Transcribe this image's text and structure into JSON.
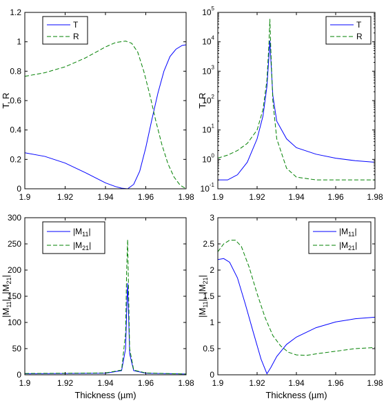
{
  "figure": {
    "background": "#ffffff",
    "series_colors": {
      "solid": "#0000ff",
      "dashed": "#008000"
    }
  },
  "chart_data": [
    {
      "id": "tr_linear",
      "type": "line",
      "title": "",
      "ylabel": "T, R",
      "xlabel": "",
      "xlim": [
        1.9,
        1.98
      ],
      "ylim": [
        0,
        1.2
      ],
      "yscale": "linear",
      "xticks": [
        1.9,
        1.92,
        1.94,
        1.96,
        1.98
      ],
      "xtick_labels": [
        "1.9",
        "1.92",
        "1.94",
        "1.96",
        "1.98"
      ],
      "yticks": [
        0,
        0.2,
        0.4,
        0.6,
        0.8,
        1,
        1.2
      ],
      "ytick_labels": [
        "0",
        "0.2",
        "0.4",
        "0.6",
        "0.8",
        "1",
        "1.2"
      ],
      "grid": false,
      "legend": {
        "position": "top-left",
        "entries": [
          "T",
          "R"
        ]
      },
      "series": [
        {
          "name": "T",
          "color": "#0000ff",
          "style": "solid",
          "x": [
            1.9,
            1.91,
            1.92,
            1.93,
            1.94,
            1.945,
            1.948,
            1.951,
            1.954,
            1.957,
            1.96,
            1.963,
            1.966,
            1.969,
            1.972,
            1.975,
            1.978,
            1.98
          ],
          "y": [
            0.245,
            0.22,
            0.175,
            0.11,
            0.04,
            0.015,
            0.004,
            0.0,
            0.03,
            0.12,
            0.28,
            0.47,
            0.65,
            0.8,
            0.9,
            0.95,
            0.975,
            0.98
          ]
        },
        {
          "name": "R",
          "color": "#008000",
          "style": "dashed",
          "x": [
            1.9,
            1.91,
            1.92,
            1.93,
            1.94,
            1.945,
            1.95,
            1.953,
            1.956,
            1.959,
            1.962,
            1.965,
            1.968,
            1.971,
            1.974,
            1.977,
            1.98
          ],
          "y": [
            0.765,
            0.79,
            0.83,
            0.89,
            0.965,
            0.995,
            1.005,
            0.99,
            0.93,
            0.8,
            0.64,
            0.46,
            0.3,
            0.17,
            0.08,
            0.025,
            0.0
          ]
        }
      ]
    },
    {
      "id": "tr_log",
      "type": "line",
      "title": "",
      "ylabel": "T, R",
      "xlabel": "",
      "xlim": [
        1.9,
        1.98
      ],
      "ylim": [
        0.1,
        100000
      ],
      "yscale": "log",
      "xticks": [
        1.9,
        1.92,
        1.94,
        1.96,
        1.98
      ],
      "xtick_labels": [
        "1.9",
        "1.92",
        "1.94",
        "1.96",
        "1.98"
      ],
      "yticks": [
        0.1,
        1,
        10,
        100,
        1000,
        10000,
        100000
      ],
      "ytick_labels": [
        [
          "10",
          "-1"
        ],
        [
          "10",
          "0"
        ],
        [
          "10",
          "1"
        ],
        [
          "10",
          "2"
        ],
        [
          "10",
          "3"
        ],
        [
          "10",
          "4"
        ],
        [
          "10",
          "5"
        ]
      ],
      "grid": false,
      "legend": {
        "position": "top-right",
        "entries": [
          "T",
          "R"
        ]
      },
      "series": [
        {
          "name": "T",
          "color": "#0000ff",
          "style": "solid",
          "x": [
            1.9,
            1.905,
            1.91,
            1.915,
            1.92,
            1.923,
            1.925,
            1.926,
            1.9265,
            1.927,
            1.928,
            1.93,
            1.935,
            1.94,
            1.95,
            1.96,
            1.97,
            1.98
          ],
          "y": [
            0.2,
            0.2,
            0.3,
            0.8,
            5,
            30,
            300,
            3000,
            11000,
            2500,
            150,
            20,
            5,
            2.5,
            1.5,
            1.1,
            0.9,
            0.8
          ]
        },
        {
          "name": "R",
          "color": "#008000",
          "style": "dashed",
          "x": [
            1.9,
            1.905,
            1.91,
            1.915,
            1.92,
            1.923,
            1.925,
            1.926,
            1.9265,
            1.927,
            1.928,
            1.93,
            1.935,
            1.94,
            1.95,
            1.96,
            1.97,
            1.98
          ],
          "y": [
            1.1,
            1.4,
            2,
            3.5,
            10,
            50,
            500,
            8000,
            60000,
            5000,
            100,
            5,
            0.5,
            0.25,
            0.2,
            0.2,
            0.2,
            0.2
          ]
        }
      ]
    },
    {
      "id": "m_linear_peak",
      "type": "line",
      "title": "",
      "ylabel": "|M11|, |M21|",
      "xlabel": "Thickness (µm)",
      "xlim": [
        1.9,
        1.98
      ],
      "ylim": [
        0,
        300
      ],
      "yscale": "linear",
      "xticks": [
        1.9,
        1.92,
        1.94,
        1.96,
        1.98
      ],
      "xtick_labels": [
        "1.9",
        "1.92",
        "1.94",
        "1.96",
        "1.98"
      ],
      "yticks": [
        0,
        50,
        100,
        150,
        200,
        250,
        300
      ],
      "ytick_labels": [
        "0",
        "50",
        "100",
        "150",
        "200",
        "250",
        "300"
      ],
      "grid": false,
      "legend": {
        "position": "top-left",
        "entries": [
          [
            "|M",
            "11",
            "|"
          ],
          [
            "|M",
            "21",
            "|"
          ]
        ]
      },
      "series": [
        {
          "name": "|M11|",
          "color": "#0000ff",
          "style": "solid",
          "x": [
            1.9,
            1.94,
            1.948,
            1.95,
            1.9505,
            1.951,
            1.9515,
            1.952,
            1.954,
            1.96,
            1.98
          ],
          "y": [
            2,
            3,
            8,
            50,
            120,
            175,
            110,
            40,
            8,
            3,
            1.5
          ]
        },
        {
          "name": "|M21|",
          "color": "#008000",
          "style": "dashed",
          "x": [
            1.9,
            1.94,
            1.948,
            1.95,
            1.9505,
            1.951,
            1.9515,
            1.952,
            1.954,
            1.96,
            1.98
          ],
          "y": [
            2.5,
            3.5,
            9,
            80,
            200,
            258,
            150,
            50,
            9,
            3.5,
            1.5
          ]
        }
      ]
    },
    {
      "id": "m_linear_zoom",
      "type": "line",
      "title": "",
      "ylabel": "|M11|, |M21|",
      "xlabel": "Thickness (µm)",
      "xlim": [
        1.9,
        1.98
      ],
      "ylim": [
        0,
        3
      ],
      "yscale": "linear",
      "xticks": [
        1.9,
        1.92,
        1.94,
        1.96,
        1.98
      ],
      "xtick_labels": [
        "1.9",
        "1.92",
        "1.94",
        "1.96",
        "1.98"
      ],
      "yticks": [
        0,
        0.5,
        1,
        1.5,
        2,
        2.5,
        3
      ],
      "ytick_labels": [
        "0",
        "0.5",
        "1",
        "1.5",
        "2",
        "2.5",
        "3"
      ],
      "grid": false,
      "legend": {
        "position": "top-right",
        "entries": [
          [
            "|M",
            "11",
            "|"
          ],
          [
            "|M",
            "21",
            "|"
          ]
        ]
      },
      "series": [
        {
          "name": "|M11|",
          "color": "#0000ff",
          "style": "solid",
          "x": [
            1.9,
            1.903,
            1.906,
            1.91,
            1.914,
            1.918,
            1.922,
            1.925,
            1.927,
            1.93,
            1.935,
            1.94,
            1.95,
            1.96,
            1.97,
            1.98
          ],
          "y": [
            2.2,
            2.22,
            2.15,
            1.85,
            1.35,
            0.82,
            0.3,
            0.02,
            0.14,
            0.35,
            0.58,
            0.72,
            0.9,
            1.01,
            1.07,
            1.1
          ]
        },
        {
          "name": "|M21|",
          "color": "#008000",
          "style": "dashed",
          "x": [
            1.9,
            1.903,
            1.906,
            1.909,
            1.912,
            1.916,
            1.92,
            1.924,
            1.928,
            1.932,
            1.936,
            1.94,
            1.945,
            1.95,
            1.96,
            1.97,
            1.98
          ],
          "y": [
            2.35,
            2.5,
            2.57,
            2.57,
            2.45,
            2.05,
            1.55,
            1.1,
            0.75,
            0.55,
            0.43,
            0.38,
            0.37,
            0.4,
            0.45,
            0.5,
            0.52
          ]
        }
      ]
    }
  ]
}
